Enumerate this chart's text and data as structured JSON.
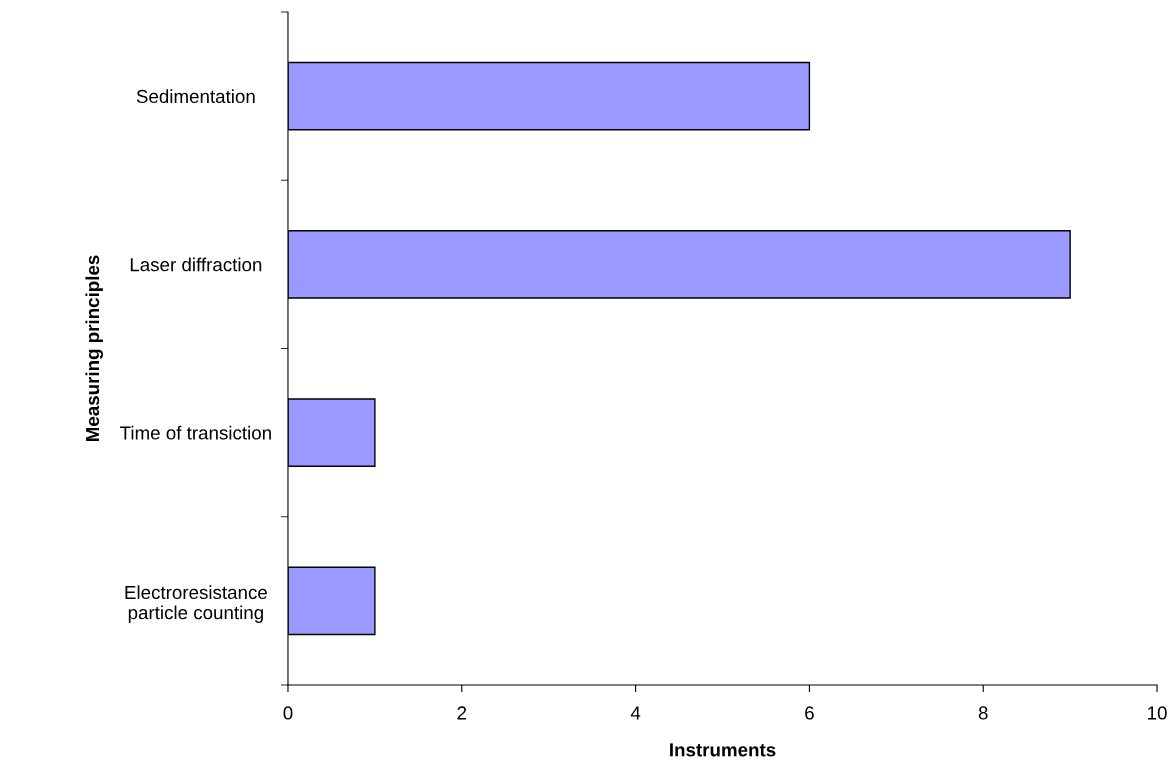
{
  "chart_data": {
    "type": "bar",
    "orientation": "horizontal",
    "categories": [
      "Sedimentation",
      "Laser diffraction",
      "Time of transiction",
      "Electroresistance\nparticle counting"
    ],
    "values": [
      6,
      9,
      1,
      1
    ],
    "color": "#9999ff",
    "xlim": [
      0,
      10
    ],
    "xticks": [
      0,
      2,
      4,
      6,
      8,
      10
    ],
    "xlabel": "Instruments",
    "ylabel": "Measuring principles",
    "grid": false,
    "legend": false
  }
}
